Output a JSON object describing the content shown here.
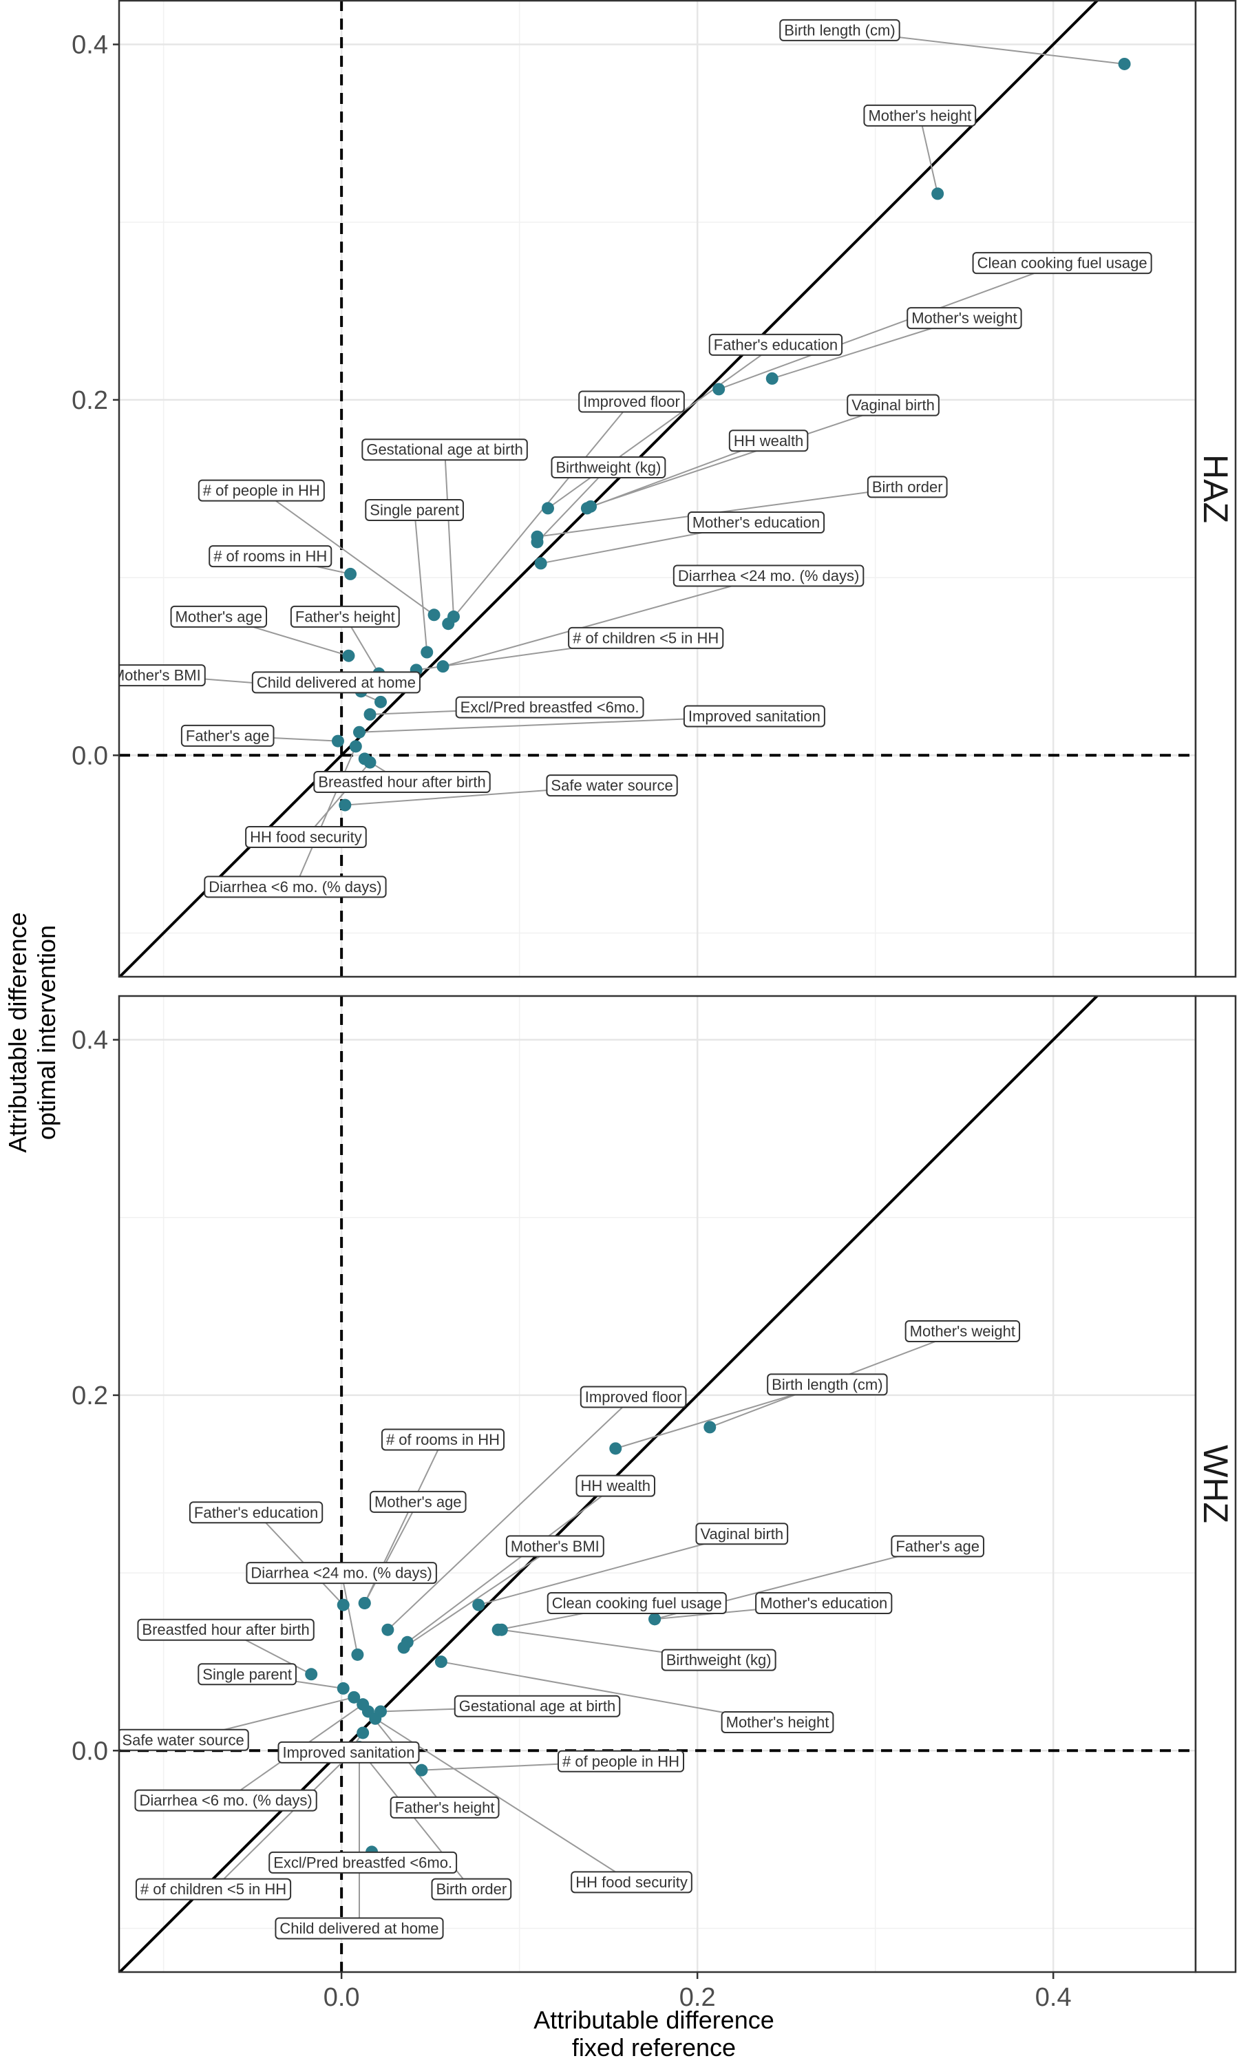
{
  "chart_data": {
    "type": "scatter",
    "xlabel_line1": "Attributable difference",
    "xlabel_line2": "fixed reference",
    "ylabel_line1": "Attributable difference",
    "ylabel_line2": "optimal intervention",
    "xlim": [
      -0.125,
      0.48
    ],
    "x_ticks": [
      0.0,
      0.2,
      0.4
    ],
    "x_tick_labels": [
      "0.0",
      "0.2",
      "0.4"
    ],
    "y_ticks": [
      0.0,
      0.2,
      0.4
    ],
    "y_tick_labels": [
      "0.0",
      "0.2",
      "0.4"
    ],
    "grid": true,
    "reference_lines": [
      "y = x",
      "x = 0 (dashed)",
      "y = 0 (dashed)"
    ],
    "point_color": "#2a7b8a",
    "facets": [
      {
        "strip": "HAZ",
        "ylim": [
          -0.125,
          0.425
        ],
        "points": [
          {
            "label": "Birth length (cm)",
            "x": 0.44,
            "y": 0.389,
            "lx": 0.28,
            "ly": 0.408
          },
          {
            "label": "Mother's height",
            "x": 0.335,
            "y": 0.316,
            "lx": 0.325,
            "ly": 0.36
          },
          {
            "label": "Clean cooking fuel usage",
            "x": 0.212,
            "y": 0.206,
            "lx": 0.405,
            "ly": 0.277
          },
          {
            "label": "Mother's weight",
            "x": 0.242,
            "y": 0.212,
            "lx": 0.35,
            "ly": 0.246
          },
          {
            "label": "Father's education",
            "x": 0.116,
            "y": 0.139,
            "lx": 0.244,
            "ly": 0.231
          },
          {
            "label": "Improved floor",
            "x": 0.06,
            "y": 0.074,
            "lx": 0.163,
            "ly": 0.199
          },
          {
            "label": "Vaginal birth",
            "x": 0.14,
            "y": 0.14,
            "lx": 0.31,
            "ly": 0.197
          },
          {
            "label": "HH wealth",
            "x": 0.138,
            "y": 0.139,
            "lx": 0.24,
            "ly": 0.177
          },
          {
            "label": "Gestational age at birth",
            "x": 0.063,
            "y": 0.078,
            "lx": 0.058,
            "ly": 0.172
          },
          {
            "label": "Birthweight (kg)",
            "x": 0.11,
            "y": 0.12,
            "lx": 0.15,
            "ly": 0.162
          },
          {
            "label": "# of people in HH",
            "x": 0.052,
            "y": 0.079,
            "lx": -0.045,
            "ly": 0.149
          },
          {
            "label": "Single parent",
            "x": 0.048,
            "y": 0.058,
            "lx": 0.041,
            "ly": 0.138
          },
          {
            "label": "Birth order",
            "x": 0.11,
            "y": 0.123,
            "lx": 0.318,
            "ly": 0.151
          },
          {
            "label": "Mother's education",
            "x": 0.112,
            "y": 0.108,
            "lx": 0.233,
            "ly": 0.131
          },
          {
            "label": "# of rooms in HH",
            "x": 0.005,
            "y": 0.102,
            "lx": -0.04,
            "ly": 0.112
          },
          {
            "label": "Diarrhea <24 mo.  (% days)",
            "x": 0.057,
            "y": 0.05,
            "lx": 0.24,
            "ly": 0.101
          },
          {
            "label": "Mother's age",
            "x": 0.004,
            "y": 0.056,
            "lx": -0.069,
            "ly": 0.078
          },
          {
            "label": "Father's height",
            "x": 0.021,
            "y": 0.046,
            "lx": 0.002,
            "ly": 0.078
          },
          {
            "label": "# of children <5 in HH",
            "x": 0.042,
            "y": 0.048,
            "lx": 0.171,
            "ly": 0.066
          },
          {
            "label": "Mother's BMI",
            "x": 0.011,
            "y": 0.036,
            "lx": -0.104,
            "ly": 0.045
          },
          {
            "label": "Child delivered at home",
            "x": 0.022,
            "y": 0.03,
            "lx": -0.003,
            "ly": 0.041
          },
          {
            "label": "Excl/Pred breastfed <6mo.",
            "x": 0.016,
            "y": 0.023,
            "lx": 0.117,
            "ly": 0.027
          },
          {
            "label": "Improved sanitation",
            "x": 0.01,
            "y": 0.013,
            "lx": 0.232,
            "ly": 0.022
          },
          {
            "label": "Father's age",
            "x": -0.002,
            "y": 0.008,
            "lx": -0.064,
            "ly": 0.011
          },
          {
            "label": "Breastfed hour after birth",
            "x": 0.013,
            "y": -0.002,
            "lx": 0.034,
            "ly": -0.015
          },
          {
            "label": "Safe water source",
            "x": 0.002,
            "y": -0.028,
            "lx": 0.152,
            "ly": -0.017
          },
          {
            "label": "HH food security",
            "x": 0.016,
            "y": -0.004,
            "lx": -0.02,
            "ly": -0.046
          },
          {
            "label": "Diarrhea <6 mo. (% days)",
            "x": 0.008,
            "y": 0.005,
            "lx": -0.026,
            "ly": -0.074
          }
        ]
      },
      {
        "strip": "WHZ",
        "ylim": [
          -0.125,
          0.425
        ],
        "points": [
          {
            "label": "Mother's weight",
            "x": 0.207,
            "y": 0.182,
            "lx": 0.349,
            "ly": 0.236
          },
          {
            "label": "Birth length (cm)",
            "x": 0.154,
            "y": 0.17,
            "lx": 0.273,
            "ly": 0.206
          },
          {
            "label": "Improved floor",
            "x": 0.026,
            "y": 0.068,
            "lx": 0.164,
            "ly": 0.199
          },
          {
            "label": "# of rooms in HH",
            "x": 0.013,
            "y": 0.083,
            "lx": 0.057,
            "ly": 0.175
          },
          {
            "label": "HH wealth",
            "x": 0.037,
            "y": 0.061,
            "lx": 0.154,
            "ly": 0.149
          },
          {
            "label": "Father's education",
            "x": 0.001,
            "y": 0.082,
            "lx": -0.048,
            "ly": 0.134
          },
          {
            "label": "Mother's age",
            "x": 0.013,
            "y": 0.083,
            "lx": 0.043,
            "ly": 0.14
          },
          {
            "label": "Vaginal birth",
            "x": 0.077,
            "y": 0.082,
            "lx": 0.225,
            "ly": 0.122
          },
          {
            "label": "Father's age",
            "x": 0.176,
            "y": 0.074,
            "lx": 0.335,
            "ly": 0.115
          },
          {
            "label": "Mother's BMI",
            "x": 0.035,
            "y": 0.058,
            "lx": 0.12,
            "ly": 0.115
          },
          {
            "label": "Diarrhea <24 mo.  (% days)",
            "x": 0.009,
            "y": 0.054,
            "lx": 0.0,
            "ly": 0.1
          },
          {
            "label": "Clean cooking fuel usage",
            "x": 0.088,
            "y": 0.068,
            "lx": 0.166,
            "ly": 0.083
          },
          {
            "label": "Mother's education",
            "x": 0.176,
            "y": 0.074,
            "lx": 0.271,
            "ly": 0.083
          },
          {
            "label": "Breastfed hour after birth",
            "x": -0.017,
            "y": 0.043,
            "lx": -0.065,
            "ly": 0.068
          },
          {
            "label": "Birthweight (kg)",
            "x": 0.09,
            "y": 0.068,
            "lx": 0.212,
            "ly": 0.051
          },
          {
            "label": "Single parent",
            "x": 0.001,
            "y": 0.035,
            "lx": -0.053,
            "ly": 0.043
          },
          {
            "label": "Gestational age at birth",
            "x": 0.022,
            "y": 0.022,
            "lx": 0.11,
            "ly": 0.025
          },
          {
            "label": "Mother's height",
            "x": 0.056,
            "y": 0.05,
            "lx": 0.245,
            "ly": 0.016
          },
          {
            "label": "Safe water source",
            "x": 0.007,
            "y": 0.03,
            "lx": -0.089,
            "ly": 0.006
          },
          {
            "label": "Improved sanitation",
            "x": 0.012,
            "y": 0.01,
            "lx": 0.004,
            "ly": -0.001
          },
          {
            "label": "# of people in HH",
            "x": 0.045,
            "y": -0.011,
            "lx": 0.157,
            "ly": -0.006
          },
          {
            "label": "Diarrhea <6 mo. (% days)",
            "x": 0.012,
            "y": 0.026,
            "lx": -0.065,
            "ly": -0.028
          },
          {
            "label": "Father's height",
            "x": 0.015,
            "y": 0.022,
            "lx": 0.058,
            "ly": -0.032
          },
          {
            "label": "Excl/Pred breastfed <6mo.",
            "x": 0.017,
            "y": -0.057,
            "lx": 0.012,
            "ly": -0.063
          },
          {
            "label": "HH food security",
            "x": 0.019,
            "y": 0.018,
            "lx": 0.163,
            "ly": -0.074
          },
          {
            "label": "Birth order",
            "x": 0.013,
            "y": -0.003,
            "lx": 0.073,
            "ly": -0.078
          },
          {
            "label": "# of children <5 in HH",
            "x": 0.007,
            "y": 0.0,
            "lx": -0.072,
            "ly": -0.078
          },
          {
            "label": "Child delivered at home",
            "x": 0.01,
            "y": 0.002,
            "lx": 0.01,
            "ly": -0.1
          }
        ]
      }
    ]
  }
}
